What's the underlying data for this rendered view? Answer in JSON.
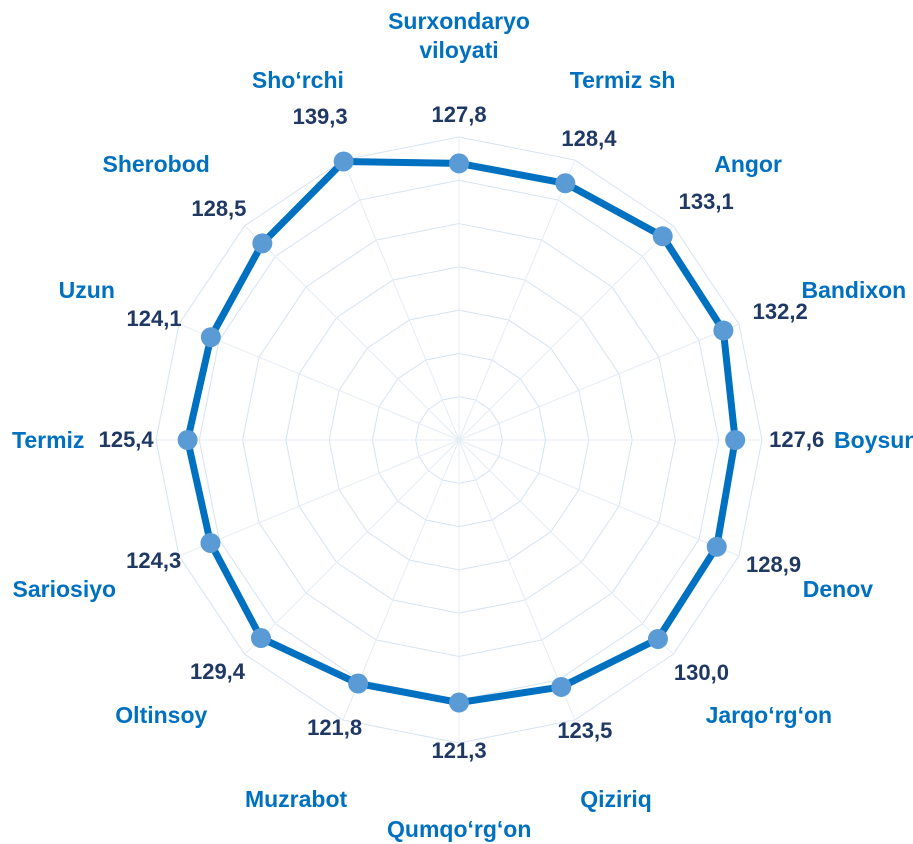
{
  "chart_data": {
    "type": "radar",
    "categories": [
      "Surxondaryo viloyati",
      "Termiz sh",
      "Angor",
      "Bandixon",
      "Boysun",
      "Denov",
      "Jarqo‘rg‘on",
      "Qiziriq",
      "Qumqo‘rg‘on",
      "Muzrabot",
      "Oltinsoy",
      "Sariosiyo",
      "Termiz",
      "Uzun",
      "Sherobod",
      "Sho‘rchi"
    ],
    "values": [
      127.8,
      128.4,
      133.1,
      132.2,
      127.6,
      128.9,
      130.0,
      123.5,
      121.3,
      121.8,
      129.4,
      124.3,
      125.4,
      124.1,
      128.5,
      139.3
    ],
    "value_labels": [
      "127,8",
      "128,4",
      "133,1",
      "132,2",
      "127,6",
      "128,9",
      "130,0",
      "123,5",
      "121,3",
      "121,8",
      "129,4",
      "124,3",
      "125,4",
      "124,1",
      "128,5",
      "139,3"
    ],
    "color": "#0070c0",
    "marker_color": "#5b9bd5",
    "ylim": [
      0,
      140
    ],
    "yticks": [
      0,
      20,
      40,
      60,
      80,
      100,
      120,
      140
    ],
    "grid": true
  }
}
